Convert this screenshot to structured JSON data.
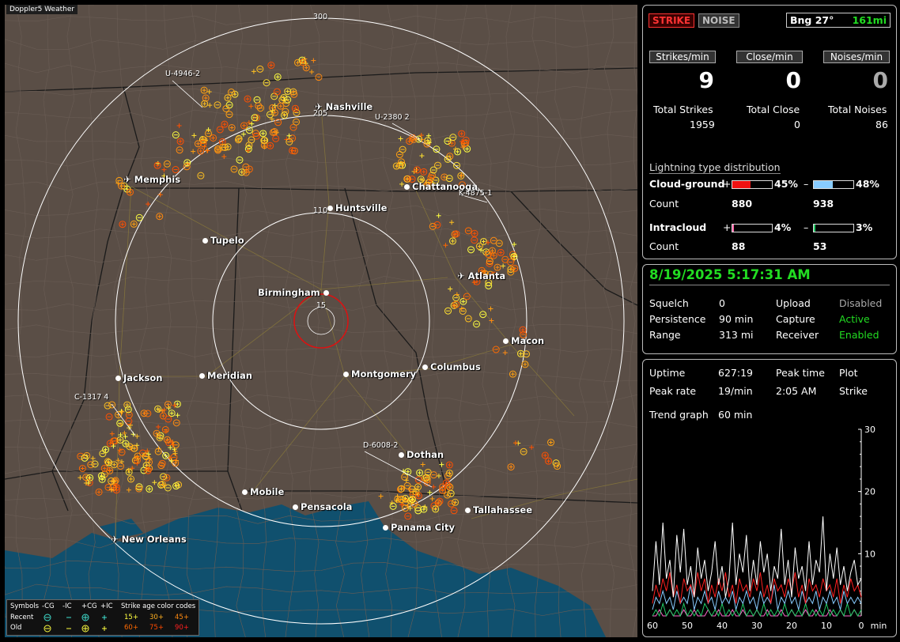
{
  "map": {
    "title": "Doppler5 Weather",
    "ring_labels": [
      {
        "label": "300"
      },
      {
        "label": "205"
      },
      {
        "label": "110"
      },
      {
        "label": "15"
      }
    ],
    "cities": [
      {
        "name": "Nashville",
        "airport": true
      },
      {
        "name": "Memphis",
        "airport": true
      },
      {
        "name": "Chattanooga",
        "airport": false
      },
      {
        "name": "Huntsville",
        "airport": false
      },
      {
        "name": "Tupelo",
        "airport": false
      },
      {
        "name": "Atlanta",
        "airport": true
      },
      {
        "name": "Birmingham",
        "airport": false
      },
      {
        "name": "Macon",
        "airport": false
      },
      {
        "name": "Jackson",
        "airport": false
      },
      {
        "name": "Meridian",
        "airport": false
      },
      {
        "name": "Montgomery",
        "airport": false
      },
      {
        "name": "Columbus",
        "airport": false
      },
      {
        "name": "Dothan",
        "airport": false
      },
      {
        "name": "Mobile",
        "airport": false
      },
      {
        "name": "Pensacola",
        "airport": false
      },
      {
        "name": "Tallahassee",
        "airport": false
      },
      {
        "name": "Panama City",
        "airport": false
      },
      {
        "name": "New Orleans",
        "airport": true
      }
    ],
    "storms": [
      {
        "id": "U-4946",
        "count": "2"
      },
      {
        "id": "U-2380",
        "count": "2"
      },
      {
        "id": "K-4875",
        "count": "1"
      },
      {
        "id": "C-1317",
        "count": "4"
      },
      {
        "id": "D-6008",
        "count": "2"
      }
    ]
  },
  "legend": {
    "symbols_label": "Symbols",
    "minus_cg": "-CG",
    "minus_ic": "-IC",
    "plus_cg": "+CG",
    "plus_ic": "+IC",
    "age_label": "Strike age color codes",
    "recent_label": "Recent",
    "old_label": "Old",
    "ages": [
      "15+",
      "30+",
      "45+",
      "60+",
      "75+",
      "90+"
    ],
    "age_colors": [
      "#ffff40",
      "#ffb020",
      "#ff7a10",
      "#ff5a00",
      "#ff3a00",
      "#ff2020"
    ]
  },
  "status": {
    "strike_label": "STRIKE",
    "noise_label": "NOISE",
    "bearing": "Bng 27°",
    "distance": "161mi",
    "strikes_per_min_label": "Strikes/min",
    "close_per_min_label": "Close/min",
    "noises_per_min_label": "Noises/min",
    "strikes_per_min": "9",
    "close_per_min": "0",
    "noises_per_min": "0",
    "total_strikes_label": "Total Strikes",
    "total_close_label": "Total Close",
    "total_noises_label": "Total Noises",
    "total_strikes": "1959",
    "total_close": "0",
    "total_noises": "86",
    "distribution_title": "Lightning type distribution",
    "cloud_ground_label": "Cloud-ground",
    "intracloud_label": "Intracloud",
    "count_label": "Count",
    "plus_sign": "+",
    "minus_sign": "–",
    "cg_pos_pct": "45%",
    "cg_neg_pct": "48%",
    "cg_pos_count": "880",
    "cg_neg_count": "938",
    "ic_pos_pct": "4%",
    "ic_neg_pct": "3%",
    "ic_pos_count": "88",
    "ic_neg_count": "53",
    "cg_pos_frac": 0.45,
    "cg_neg_frac": 0.48,
    "ic_pos_frac": 0.04,
    "ic_neg_frac": 0.03,
    "cg_pos_color": "#ee1111",
    "cg_neg_color": "#88ccff",
    "ic_pos_color": "#ff66aa",
    "ic_neg_color": "#22cc66"
  },
  "settings": {
    "datetime": "8/19/2025 5:17:31 AM",
    "squelch_label": "Squelch",
    "squelch": "0",
    "persistence_label": "Persistence",
    "persistence": "90 min",
    "range_label": "Range",
    "range": "313 mi",
    "upload_label": "Upload",
    "upload": "Disabled",
    "capture_label": "Capture",
    "capture": "Active",
    "receiver_label": "Receiver",
    "receiver": "Enabled"
  },
  "stats": {
    "uptime_label": "Uptime",
    "uptime": "627:19",
    "peak_time_label": "Peak time",
    "peak_time": "2:05 AM",
    "plot_label": "Plot",
    "plot": "Strike",
    "peak_rate_label": "Peak rate",
    "peak_rate": "19/min",
    "trend_label": "Trend graph",
    "trend": "60 min"
  },
  "chart_data": {
    "type": "line",
    "xlabel": "min",
    "x_ticks": [
      "60",
      "50",
      "40",
      "30",
      "20",
      "10",
      "0"
    ],
    "y_ticks": [
      "30",
      "20",
      "10"
    ],
    "xlim": [
      60,
      0
    ],
    "ylim": [
      0,
      30
    ],
    "series": [
      {
        "values": [
          4,
          12,
          5,
          15,
          6,
          9,
          3,
          13,
          7,
          14,
          5,
          8,
          3,
          11,
          6,
          9,
          4,
          7,
          12,
          5,
          8,
          3,
          6,
          15,
          5,
          10,
          7,
          13,
          4,
          9,
          5,
          12,
          7,
          10,
          4,
          8,
          6,
          14,
          5,
          9,
          3,
          11,
          6,
          8,
          4,
          12,
          5,
          9,
          7,
          16,
          4,
          10,
          6,
          11,
          5,
          8,
          4,
          7,
          9,
          5,
          6
        ],
        "color": "#ffffff"
      },
      {
        "values": [
          2,
          5,
          3,
          6,
          4,
          7,
          3,
          5,
          2,
          6,
          4,
          5,
          3,
          7,
          4,
          6,
          2,
          5,
          3,
          6,
          4,
          7,
          3,
          5,
          2,
          6,
          4,
          5,
          3,
          6,
          4,
          7,
          3,
          5,
          2,
          6,
          4,
          5,
          3,
          6,
          4,
          7,
          3,
          5,
          2,
          6,
          4,
          5,
          3,
          6,
          4,
          5,
          3,
          6,
          2,
          5,
          3,
          6,
          4,
          5,
          3
        ],
        "color": "#ff2020"
      },
      {
        "values": [
          1,
          3,
          2,
          4,
          2,
          3,
          1,
          4,
          2,
          3,
          2,
          5,
          1,
          3,
          2,
          4,
          2,
          3,
          1,
          4,
          2,
          3,
          2,
          4,
          1,
          3,
          2,
          4,
          2,
          3,
          1,
          4,
          2,
          3,
          2,
          5,
          1,
          3,
          2,
          4,
          2,
          3,
          1,
          4,
          2,
          3,
          2,
          4,
          1,
          3,
          2,
          4,
          2,
          3,
          1,
          4,
          2,
          3,
          2,
          3,
          2
        ],
        "color": "#88ccff"
      },
      {
        "values": [
          0,
          1,
          0,
          2,
          0,
          1,
          0,
          1,
          0,
          2,
          0,
          1,
          0,
          1,
          0,
          2,
          1,
          0,
          1,
          0,
          2,
          0,
          1,
          0,
          1,
          0,
          2,
          0,
          1,
          0,
          1,
          0,
          2,
          0,
          1,
          0,
          1,
          0,
          2,
          0,
          1,
          0,
          1,
          0,
          2,
          0,
          1,
          0,
          1,
          0,
          2,
          0,
          1,
          0,
          1,
          0,
          2,
          0,
          1,
          0,
          1
        ],
        "color": "#22cc66"
      },
      {
        "values": [
          0,
          0,
          1,
          0,
          0,
          1,
          0,
          0,
          0,
          1,
          0,
          0,
          1,
          0,
          0,
          0,
          1,
          0,
          0,
          1,
          0,
          0,
          0,
          1,
          0,
          0,
          1,
          0,
          0,
          0,
          1,
          0,
          0,
          1,
          0,
          0,
          0,
          1,
          0,
          0,
          1,
          0,
          0,
          0,
          1,
          0,
          0,
          1,
          0,
          0,
          0,
          1,
          0,
          0,
          1,
          0,
          0,
          0,
          1,
          0,
          0
        ],
        "color": "#ff66cc"
      }
    ]
  }
}
